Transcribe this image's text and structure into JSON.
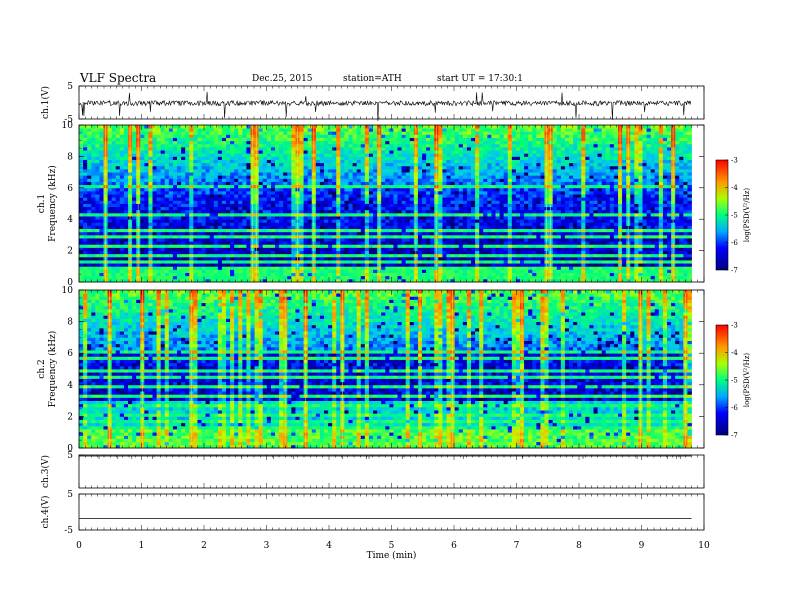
{
  "header": {
    "title": "VLF  Spectra",
    "date": "Dec.25, 2015",
    "station": "station=ATH",
    "start": "start  UT  =   17:30:1"
  },
  "chart_data": [
    {
      "type": "line",
      "panel": "ch1",
      "ylabel": "ch.1(V)",
      "ylim": [
        -5,
        5
      ],
      "yticks": [
        "5",
        "-5"
      ],
      "description_of_signal": "noisy trace near -0.2 V with frequent negative spikes",
      "baseline": -0.2
    },
    {
      "type": "heatmap",
      "panel": "ch1-spectrogram",
      "ylabel_line1": "ch.1",
      "ylabel_line2": "Frequency  (kHz)",
      "ylim": [
        0,
        10
      ],
      "yticks": [
        "0",
        "2",
        "4",
        "6",
        "8",
        "10"
      ],
      "xlim": [
        0,
        10
      ],
      "data_end_min": 9.8,
      "colorbar": {
        "label": "log(PSD(V²/Hz)",
        "range": [
          -7,
          -3
        ],
        "ticks": [
          "-3",
          "-4",
          "-5",
          "-6",
          "-7"
        ]
      }
    },
    {
      "type": "heatmap",
      "panel": "ch2-spectrogram",
      "ylabel_line1": "ch.2",
      "ylabel_line2": "Frequency  (kHz)",
      "ylim": [
        0,
        10
      ],
      "yticks": [
        "0",
        "2",
        "4",
        "6",
        "8",
        "10"
      ],
      "xlim": [
        0,
        10
      ],
      "data_end_min": 9.8,
      "colorbar": {
        "label": "log(PSD(V²/Hz)",
        "range": [
          -7,
          -3
        ],
        "ticks": [
          "-3",
          "-4",
          "-5",
          "-6",
          "-7"
        ]
      }
    },
    {
      "type": "line",
      "panel": "ch3",
      "ylabel": "ch.3(V)",
      "ylim": [
        -5,
        5
      ],
      "yticks": [
        "5"
      ],
      "baseline": 4.7
    },
    {
      "type": "line",
      "panel": "ch4",
      "ylabel": "ch.4(V)",
      "ylim": [
        -5,
        5
      ],
      "yticks": [
        "5",
        "-5"
      ],
      "baseline": -1.8
    }
  ],
  "time_axis": {
    "xlabel": "Time  (min)",
    "xlim": [
      0,
      10
    ],
    "ticks": [
      "0",
      "1",
      "2",
      "3",
      "4",
      "5",
      "6",
      "7",
      "8",
      "9",
      "10"
    ]
  },
  "colors": {
    "psd_-7": "#00007a",
    "psd_-6": "#0000ff",
    "psd_-5.5": "#00c8ff",
    "psd_-5": "#00ff64",
    "psd_-4.5": "#c8ff00",
    "psd_-4": "#ff9600",
    "psd_-3": "#ff0000",
    "axes": "#000000"
  }
}
